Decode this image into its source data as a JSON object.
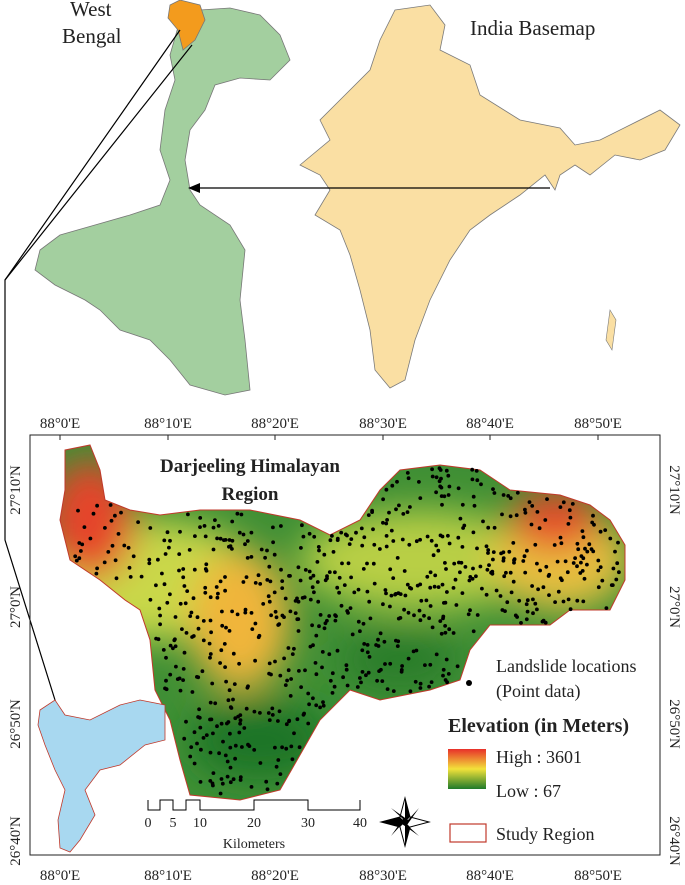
{
  "inset_maps": {
    "state_label_lines": [
      "West",
      "Bengal"
    ],
    "basemap_label": "India Basemap"
  },
  "map": {
    "title_lines": [
      "Darjeeling Himalayan",
      "Region"
    ],
    "lon_labels": [
      "88°0'E",
      "88°10'E",
      "88°20'E",
      "88°30'E",
      "88°40'E",
      "88°50'E"
    ],
    "lat_labels": [
      "27°10'N",
      "27°0'N",
      "26°50'N",
      "26°40'N"
    ]
  },
  "legend": {
    "landslide_lines": [
      "Landslide locations",
      "(Point data)"
    ],
    "elevation_title": "Elevation (in Meters)",
    "high": "High : 3601",
    "low": "Low : 67",
    "study_region": "Study Region"
  },
  "scale_bar": {
    "ticks": [
      "0",
      "5",
      "10",
      "20",
      "30",
      "40"
    ],
    "unit": "Kilometers"
  }
}
